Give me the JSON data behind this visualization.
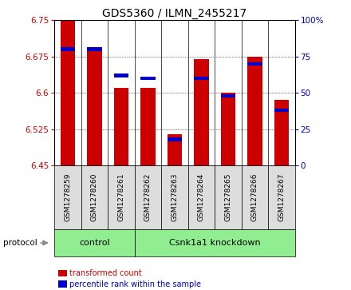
{
  "title": "GDS5360 / ILMN_2455217",
  "samples": [
    "GSM1278259",
    "GSM1278260",
    "GSM1278261",
    "GSM1278262",
    "GSM1278263",
    "GSM1278264",
    "GSM1278265",
    "GSM1278266",
    "GSM1278267"
  ],
  "transformed_counts": [
    6.75,
    6.69,
    6.61,
    6.61,
    6.515,
    6.67,
    6.6,
    6.675,
    6.585
  ],
  "percentile_ranks": [
    80,
    80,
    62,
    60,
    18,
    60,
    48,
    70,
    38
  ],
  "ylim": [
    6.45,
    6.75
  ],
  "y2lim": [
    0,
    100
  ],
  "yticks": [
    6.45,
    6.525,
    6.6,
    6.675,
    6.75
  ],
  "y2ticks": [
    0,
    25,
    50,
    75,
    100
  ],
  "bar_color": "#cc0000",
  "percentile_color": "#0000cc",
  "groups": [
    {
      "label": "control",
      "start": 0,
      "end": 3,
      "color": "#90ee90"
    },
    {
      "label": "Csnk1a1 knockdown",
      "start": 3,
      "end": 9,
      "color": "#90ee90"
    }
  ],
  "protocol_label": "protocol",
  "legend_items": [
    {
      "label": "transformed count",
      "color": "#cc0000"
    },
    {
      "label": "percentile rank within the sample",
      "color": "#0000cc"
    }
  ],
  "bar_width": 0.55,
  "grid_color": "#000000",
  "background_color": "#ffffff",
  "plot_bg_color": "#ffffff",
  "tick_label_color_left": "#cc0000",
  "tick_label_color_right": "#0000cc",
  "sample_box_color": "#dddddd",
  "group_box_color": "#90ee90"
}
